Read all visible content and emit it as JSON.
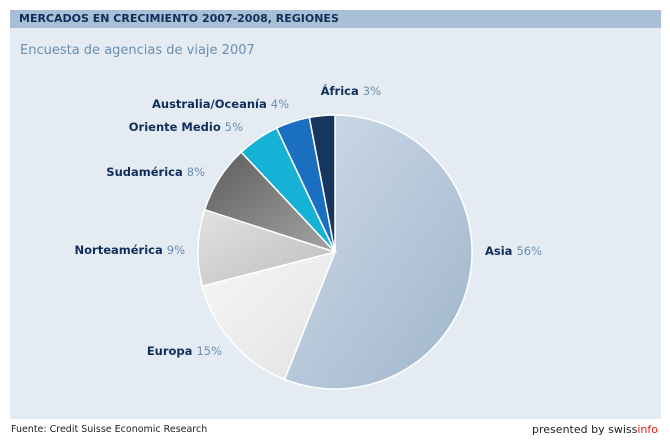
{
  "header": {
    "title": "MERCADOS EN CRECIMIENTO 2007-2008, REGIONES"
  },
  "chart_data": {
    "type": "pie",
    "title": "MERCADOS EN CRECIMIENTO 2007-2008, REGIONES",
    "subtitle": "Encuesta de agencias de viaje 2007",
    "value_unit": "%",
    "slices": [
      {
        "label": "Asia",
        "value": 56,
        "color": "#a9bdd2"
      },
      {
        "label": "Europa",
        "value": 15,
        "color": "#ececec"
      },
      {
        "label": "Norteamérica",
        "value": 9,
        "color": "#cfcfcf"
      },
      {
        "label": "Sudamérica",
        "value": 8,
        "color": "#7a7a7a"
      },
      {
        "label": "Oriente Medio",
        "value": 5,
        "color": "#15b2d6"
      },
      {
        "label": "Australia/Oceanía",
        "value": 4,
        "color": "#1a6fc0"
      },
      {
        "label": "África",
        "value": 3,
        "color": "#17365f"
      }
    ],
    "start": "12 o'clock",
    "direction": "clockwise"
  },
  "footer": {
    "source": "Fuente: Credit Suisse Economic Research",
    "presented_by": "presented by ",
    "brand_part1": "swiss",
    "brand_part2": "info"
  },
  "colors": {
    "label_text": "#0f2f5a",
    "value_text": "#6a8fb0",
    "header_bg": "#a9bfd6",
    "panel_bg": "#e4ebf3"
  }
}
